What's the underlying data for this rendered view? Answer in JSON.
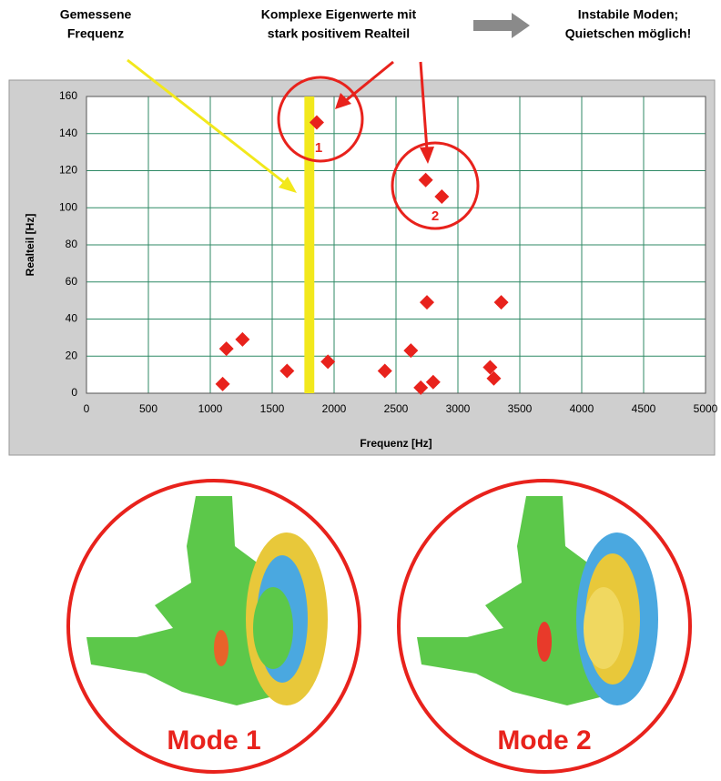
{
  "header": {
    "measured": [
      "Gemessene",
      "Frequenz"
    ],
    "complex": [
      "Komplexe Eigenwerte mit",
      "stark positivem Realteil"
    ],
    "unstable": [
      "Instabile Moden;",
      "Quietschen möglich!"
    ]
  },
  "chart_data": {
    "type": "scatter",
    "xlabel": "Frequenz [Hz]",
    "ylabel": "Realteil [Hz]",
    "x": [
      1860,
      2740,
      2870,
      2750,
      3350,
      1130,
      1260,
      1100,
      1620,
      1950,
      2410,
      2620,
      2700,
      2800,
      3260,
      3290
    ],
    "values": [
      146,
      115,
      106,
      49,
      49,
      24,
      29,
      5,
      12,
      17,
      12,
      23,
      3,
      6,
      14,
      8
    ],
    "color": "#e8221c",
    "xlim": [
      0,
      5000
    ],
    "ylim": [
      0,
      160
    ],
    "xticks": [
      0,
      500,
      1000,
      1500,
      2000,
      2500,
      3000,
      3500,
      4000,
      4500,
      5000
    ],
    "yticks": [
      0,
      20,
      40,
      60,
      80,
      100,
      120,
      140,
      160
    ],
    "grid": true,
    "measured_band": [
      1760,
      1840
    ],
    "band_color": "#f2e81c",
    "cluster_labels": [
      1,
      2
    ]
  },
  "modes": [
    "Mode 1",
    "Mode 2"
  ]
}
